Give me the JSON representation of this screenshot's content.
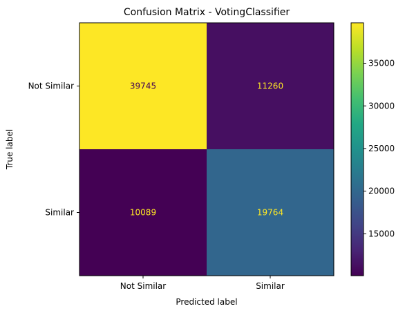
{
  "chart_data": {
    "type": "heatmap",
    "title": "Confusion Matrix - VotingClassifier",
    "xlabel": "Predicted label",
    "ylabel": "True label",
    "x_categories": [
      "Not Similar",
      "Similar"
    ],
    "y_categories": [
      "Not Similar",
      "Similar"
    ],
    "values": [
      [
        39745,
        11260
      ],
      [
        10089,
        19764
      ]
    ],
    "colormap": "viridis",
    "colorbar": {
      "range": [
        10089,
        39745
      ],
      "ticks": [
        15000,
        20000,
        25000,
        30000,
        35000
      ],
      "tick_labels": [
        "15000",
        "20000",
        "25000",
        "30000",
        "35000"
      ]
    },
    "text_colors": {
      "on_dark": "#fde725",
      "on_light": "#440154"
    }
  }
}
